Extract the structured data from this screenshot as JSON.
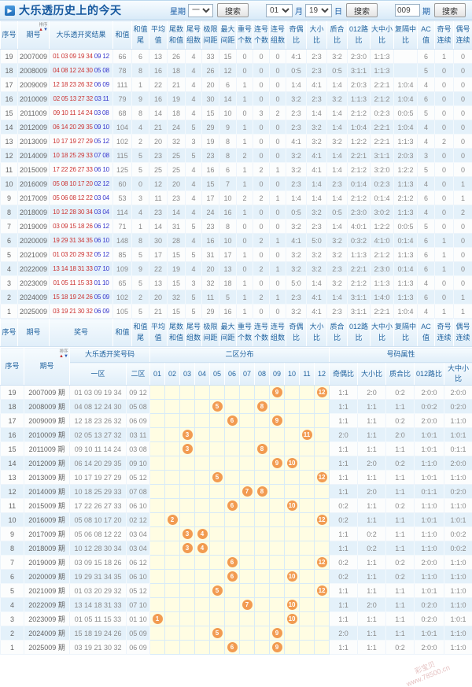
{
  "header": {
    "title": "大乐透历史上的今天"
  },
  "controls": {
    "week_label": "星期",
    "week_value": "一",
    "month_value": "01",
    "month_unit": "月",
    "day_value": "19",
    "day_unit": "日",
    "issue_value": "009",
    "issue_unit": "期",
    "search_label": "搜索"
  },
  "sort_widget": {
    "label": "排序",
    "up_arrow": "▲",
    "down_arrow": "▼"
  },
  "table1": {
    "headers": [
      "序号",
      "期号",
      "大乐透开奖结果",
      "和值",
      "和值尾",
      "平均值",
      "尾数和值",
      "尾号组数",
      "极限间距",
      "最大间距",
      "重号个数",
      "连号个数",
      "连号组数",
      "奇偶比",
      "大小比",
      "质合比",
      "012路比",
      "大中小比",
      "复隔中比",
      "AC值",
      "奇号连续",
      "偶号连续"
    ],
    "footer_headers": [
      "序号",
      "期号",
      "奖号",
      "和值",
      "和值尾",
      "平均值",
      "尾数和值",
      "尾号组数",
      "极限间距",
      "最大间距",
      "重号个数",
      "连号个数",
      "连号组数",
      "奇偶比",
      "大小比",
      "质合比",
      "012路比",
      "大中小比",
      "复隔中比",
      "AC值",
      "奇号连续",
      "偶号连续"
    ],
    "rows": [
      {
        "seq": "19",
        "issue": "2007009",
        "front": "01 03 09 19 34",
        "back": "09 12",
        "stats": [
          "66",
          "6",
          "13",
          "26",
          "4",
          "33",
          "15",
          "0",
          "0",
          "0",
          "4:1",
          "2:3",
          "3:2",
          "2:3:0",
          "1:1:3",
          "",
          "6",
          "1",
          "0"
        ]
      },
      {
        "seq": "18",
        "issue": "2008009",
        "front": "04 08 12 24 30",
        "back": "05 08",
        "stats": [
          "78",
          "8",
          "16",
          "18",
          "4",
          "26",
          "12",
          "0",
          "0",
          "0",
          "0:5",
          "2:3",
          "0:5",
          "3:1:1",
          "1:1:3",
          "",
          "5",
          "0",
          "0"
        ]
      },
      {
        "seq": "17",
        "issue": "2009009",
        "front": "12 18 23 26 32",
        "back": "06 09",
        "stats": [
          "111",
          "1",
          "22",
          "21",
          "4",
          "20",
          "6",
          "1",
          "0",
          "0",
          "1:4",
          "4:1",
          "1:4",
          "2:0:3",
          "2:2:1",
          "1:0:4",
          "4",
          "0",
          "0"
        ]
      },
      {
        "seq": "16",
        "issue": "2010009",
        "front": "02 05 13 27 32",
        "back": "03 11",
        "stats": [
          "79",
          "9",
          "16",
          "19",
          "4",
          "30",
          "14",
          "1",
          "0",
          "0",
          "3:2",
          "2:3",
          "3:2",
          "1:1:3",
          "2:1:2",
          "1:0:4",
          "6",
          "0",
          "0"
        ]
      },
      {
        "seq": "15",
        "issue": "2011009",
        "front": "09 10 11 14 24",
        "back": "03 08",
        "stats": [
          "68",
          "8",
          "14",
          "18",
          "4",
          "15",
          "10",
          "0",
          "3",
          "2",
          "2:3",
          "1:4",
          "1:4",
          "2:1:2",
          "0:2:3",
          "0:0:5",
          "5",
          "0",
          "0"
        ]
      },
      {
        "seq": "14",
        "issue": "2012009",
        "front": "06 14 20 29 35",
        "back": "09 10",
        "stats": [
          "104",
          "4",
          "21",
          "24",
          "5",
          "29",
          "9",
          "1",
          "0",
          "0",
          "2:3",
          "3:2",
          "1:4",
          "1:0:4",
          "2:2:1",
          "1:0:4",
          "4",
          "0",
          "0"
        ]
      },
      {
        "seq": "13",
        "issue": "2013009",
        "front": "10 17 19 27 29",
        "back": "05 12",
        "stats": [
          "102",
          "2",
          "20",
          "32",
          "3",
          "19",
          "8",
          "1",
          "0",
          "0",
          "4:1",
          "3:2",
          "3:2",
          "1:2:2",
          "2:2:1",
          "1:1:3",
          "4",
          "2",
          "0"
        ]
      },
      {
        "seq": "12",
        "issue": "2014009",
        "front": "10 18 25 29 33",
        "back": "07 08",
        "stats": [
          "115",
          "5",
          "23",
          "25",
          "5",
          "23",
          "8",
          "2",
          "0",
          "0",
          "3:2",
          "4:1",
          "1:4",
          "2:2:1",
          "3:1:1",
          "2:0:3",
          "3",
          "0",
          "0"
        ]
      },
      {
        "seq": "11",
        "issue": "2015009",
        "front": "17 22 26 27 33",
        "back": "06 10",
        "stats": [
          "125",
          "5",
          "25",
          "25",
          "4",
          "16",
          "6",
          "1",
          "2",
          "1",
          "3:2",
          "4:1",
          "1:4",
          "2:1:2",
          "3:2:0",
          "1:2:2",
          "5",
          "0",
          "0"
        ]
      },
      {
        "seq": "10",
        "issue": "2016009",
        "front": "05 08 10 17 20",
        "back": "02 12",
        "stats": [
          "60",
          "0",
          "12",
          "20",
          "4",
          "15",
          "7",
          "1",
          "0",
          "0",
          "2:3",
          "1:4",
          "2:3",
          "0:1:4",
          "0:2:3",
          "1:1:3",
          "4",
          "0",
          "1"
        ]
      },
      {
        "seq": "9",
        "issue": "2017009",
        "front": "05 06 08 12 22",
        "back": "03 04",
        "stats": [
          "53",
          "3",
          "11",
          "23",
          "4",
          "17",
          "10",
          "2",
          "2",
          "1",
          "1:4",
          "1:4",
          "1:4",
          "2:1:2",
          "0:1:4",
          "2:1:2",
          "6",
          "0",
          "1"
        ]
      },
      {
        "seq": "8",
        "issue": "2018009",
        "front": "10 12 28 30 34",
        "back": "03 04",
        "stats": [
          "114",
          "4",
          "23",
          "14",
          "4",
          "24",
          "16",
          "1",
          "0",
          "0",
          "0:5",
          "3:2",
          "0:5",
          "2:3:0",
          "3:0:2",
          "1:1:3",
          "4",
          "0",
          "2"
        ]
      },
      {
        "seq": "7",
        "issue": "2019009",
        "front": "03 09 15 18 26",
        "back": "06 12",
        "stats": [
          "71",
          "1",
          "14",
          "31",
          "5",
          "23",
          "8",
          "0",
          "0",
          "0",
          "3:2",
          "2:3",
          "1:4",
          "4:0:1",
          "1:2:2",
          "0:0:5",
          "5",
          "0",
          "0"
        ]
      },
      {
        "seq": "6",
        "issue": "2020009",
        "front": "19 29 31 34 35",
        "back": "06 10",
        "stats": [
          "148",
          "8",
          "30",
          "28",
          "4",
          "16",
          "10",
          "0",
          "2",
          "1",
          "4:1",
          "5:0",
          "3:2",
          "0:3:2",
          "4:1:0",
          "0:1:4",
          "6",
          "1",
          "0"
        ]
      },
      {
        "seq": "5",
        "issue": "2021009",
        "front": "01 03 20 29 32",
        "back": "05 12",
        "stats": [
          "85",
          "5",
          "17",
          "15",
          "5",
          "31",
          "17",
          "1",
          "0",
          "0",
          "3:2",
          "3:2",
          "3:2",
          "1:1:3",
          "2:1:2",
          "1:1:3",
          "6",
          "1",
          "0"
        ]
      },
      {
        "seq": "4",
        "issue": "2022009",
        "front": "13 14 18 31 33",
        "back": "07 10",
        "stats": [
          "109",
          "9",
          "22",
          "19",
          "4",
          "20",
          "13",
          "0",
          "2",
          "1",
          "3:2",
          "3:2",
          "2:3",
          "2:2:1",
          "2:3:0",
          "0:1:4",
          "6",
          "1",
          "0"
        ]
      },
      {
        "seq": "3",
        "issue": "2023009",
        "front": "01 05 11 15 33",
        "back": "01 10",
        "stats": [
          "65",
          "5",
          "13",
          "15",
          "3",
          "32",
          "18",
          "1",
          "0",
          "0",
          "5:0",
          "1:4",
          "3:2",
          "2:1:2",
          "1:1:3",
          "1:1:3",
          "4",
          "0",
          "0"
        ]
      },
      {
        "seq": "2",
        "issue": "2024009",
        "front": "15 18 19 24 26",
        "back": "05 09",
        "stats": [
          "102",
          "2",
          "20",
          "32",
          "5",
          "11",
          "5",
          "1",
          "2",
          "1",
          "2:3",
          "4:1",
          "1:4",
          "3:1:1",
          "1:4:0",
          "1:1:3",
          "6",
          "0",
          "1"
        ]
      },
      {
        "seq": "1",
        "issue": "2025009",
        "front": "03 19 21 30 32",
        "back": "06 09",
        "stats": [
          "105",
          "5",
          "21",
          "15",
          "5",
          "29",
          "16",
          "1",
          "0",
          "0",
          "3:2",
          "4:1",
          "2:3",
          "3:1:1",
          "2:2:1",
          "1:0:4",
          "4",
          "1",
          "1"
        ]
      }
    ]
  },
  "table2": {
    "group_headers": {
      "seq": "序号",
      "issue": "期号",
      "result": "大乐透开奖号码",
      "zone": "二区分布",
      "attrs": "号码属性"
    },
    "sub_headers": {
      "front": "一区",
      "back": "二区",
      "zone_cells": [
        "01",
        "02",
        "03",
        "04",
        "05",
        "06",
        "07",
        "08",
        "09",
        "10",
        "11",
        "12"
      ],
      "attr_cells": [
        "奇偶比",
        "大小比",
        "质合比",
        "012路比",
        "大中小比"
      ]
    },
    "issue_suffix": "期",
    "rows": [
      {
        "seq": "19",
        "issue": "2007009 期",
        "front": "01 03 09 19 34",
        "back": "09 12",
        "balls": [
          9,
          12
        ],
        "attrs": [
          "1:1",
          "2:0",
          "0:2",
          "2:0:0",
          "2:0:0"
        ]
      },
      {
        "seq": "18",
        "issue": "2008009 期",
        "front": "04 08 12 24 30",
        "back": "05 08",
        "balls": [
          5,
          8
        ],
        "attrs": [
          "1:1",
          "1:1",
          "1:1",
          "0:0:2",
          "0:2:0"
        ]
      },
      {
        "seq": "17",
        "issue": "2009009 期",
        "front": "12 18 23 26 32",
        "back": "06 09",
        "balls": [
          6,
          9
        ],
        "attrs": [
          "1:1",
          "1:1",
          "0:2",
          "2:0:0",
          "1:1:0"
        ]
      },
      {
        "seq": "16",
        "issue": "2010009 期",
        "front": "02 05 13 27 32",
        "back": "03 11",
        "balls": [
          3,
          11
        ],
        "attrs": [
          "2:0",
          "1:1",
          "2:0",
          "1:0:1",
          "1:0:1"
        ]
      },
      {
        "seq": "15",
        "issue": "2011009 期",
        "front": "09 10 11 14 24",
        "back": "03 08",
        "balls": [
          3,
          8
        ],
        "attrs": [
          "1:1",
          "1:1",
          "1:1",
          "1:0:1",
          "0:1:1"
        ]
      },
      {
        "seq": "14",
        "issue": "2012009 期",
        "front": "06 14 20 29 35",
        "back": "09 10",
        "balls": [
          9,
          10
        ],
        "attrs": [
          "1:1",
          "2:0",
          "0:2",
          "1:1:0",
          "2:0:0"
        ]
      },
      {
        "seq": "13",
        "issue": "2013009 期",
        "front": "10 17 19 27 29",
        "back": "05 12",
        "balls": [
          5,
          12
        ],
        "attrs": [
          "1:1",
          "1:1",
          "1:1",
          "1:0:1",
          "1:1:0"
        ]
      },
      {
        "seq": "12",
        "issue": "2014009 期",
        "front": "10 18 25 29 33",
        "back": "07 08",
        "balls": [
          7,
          8
        ],
        "attrs": [
          "1:1",
          "2:0",
          "1:1",
          "0:1:1",
          "0:2:0"
        ]
      },
      {
        "seq": "11",
        "issue": "2015009 期",
        "front": "17 22 26 27 33",
        "back": "06 10",
        "balls": [
          6,
          10
        ],
        "attrs": [
          "0:2",
          "1:1",
          "0:2",
          "1:1:0",
          "1:1:0"
        ]
      },
      {
        "seq": "10",
        "issue": "2016009 期",
        "front": "05 08 10 17 20",
        "back": "02 12",
        "balls": [
          2,
          12
        ],
        "attrs": [
          "0:2",
          "1:1",
          "1:1",
          "1:0:1",
          "1:0:1"
        ]
      },
      {
        "seq": "9",
        "issue": "2017009 期",
        "front": "05 06 08 12 22",
        "back": "03 04",
        "balls": [
          3,
          4
        ],
        "attrs": [
          "1:1",
          "0:2",
          "1:1",
          "1:1:0",
          "0:0:2"
        ]
      },
      {
        "seq": "8",
        "issue": "2018009 期",
        "front": "10 12 28 30 34",
        "back": "03 04",
        "balls": [
          3,
          4
        ],
        "attrs": [
          "1:1",
          "0:2",
          "1:1",
          "1:1:0",
          "0:0:2"
        ]
      },
      {
        "seq": "7",
        "issue": "2019009 期",
        "front": "03 09 15 18 26",
        "back": "06 12",
        "balls": [
          6,
          12
        ],
        "attrs": [
          "0:2",
          "1:1",
          "0:2",
          "2:0:0",
          "1:1:0"
        ]
      },
      {
        "seq": "6",
        "issue": "2020009 期",
        "front": "19 29 31 34 35",
        "back": "06 10",
        "balls": [
          6,
          10
        ],
        "attrs": [
          "0:2",
          "1:1",
          "0:2",
          "1:1:0",
          "1:1:0"
        ]
      },
      {
        "seq": "5",
        "issue": "2021009 期",
        "front": "01 03 20 29 32",
        "back": "05 12",
        "balls": [
          5,
          12
        ],
        "attrs": [
          "1:1",
          "1:1",
          "1:1",
          "1:0:1",
          "1:1:0"
        ]
      },
      {
        "seq": "4",
        "issue": "2022009 期",
        "front": "13 14 18 31 33",
        "back": "07 10",
        "balls": [
          7,
          10
        ],
        "attrs": [
          "1:1",
          "2:0",
          "1:1",
          "0:2:0",
          "1:1:0"
        ]
      },
      {
        "seq": "3",
        "issue": "2023009 期",
        "front": "01 05 11 15 33",
        "back": "01 10",
        "balls": [
          1,
          10
        ],
        "attrs": [
          "1:1",
          "1:1",
          "1:1",
          "0:2:0",
          "1:0:1"
        ]
      },
      {
        "seq": "2",
        "issue": "2024009 期",
        "front": "15 18 19 24 26",
        "back": "05 09",
        "balls": [
          5,
          9
        ],
        "attrs": [
          "2:0",
          "1:1",
          "1:1",
          "1:0:1",
          "1:1:0"
        ]
      },
      {
        "seq": "1",
        "issue": "2025009 期",
        "front": "03 19 21 30 32",
        "back": "06 09",
        "balls": [
          6,
          9
        ],
        "attrs": [
          "1:1",
          "1:1",
          "0:2",
          "2:0:0",
          "1:1:0"
        ]
      }
    ]
  },
  "watermark": {
    "line1": "彩宝贝",
    "line2": "www.78500.cn"
  }
}
